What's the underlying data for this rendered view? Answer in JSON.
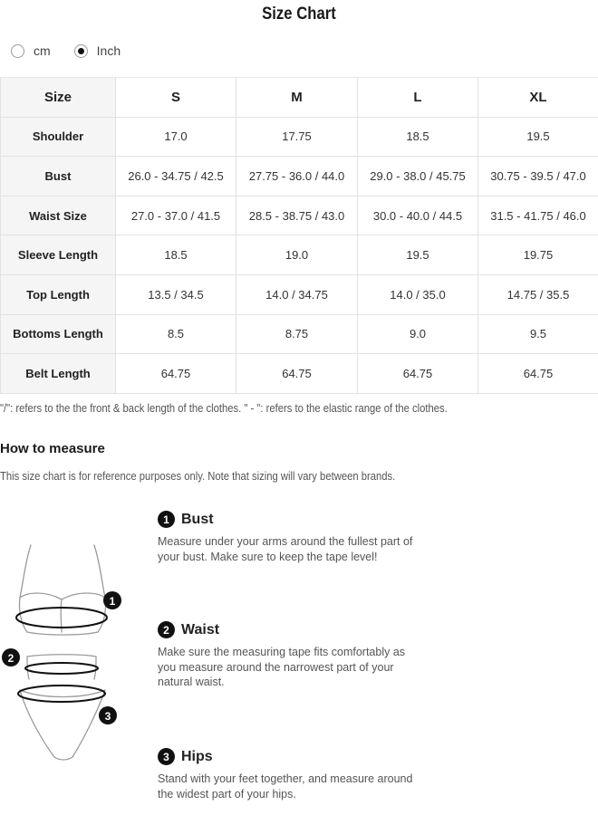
{
  "title": "Size Chart",
  "units": [
    {
      "label": "cm",
      "selected": false
    },
    {
      "label": "Inch",
      "selected": true
    }
  ],
  "table": {
    "header": [
      "Size",
      "S",
      "M",
      "L",
      "XL"
    ],
    "rows": [
      {
        "label": "Shoulder",
        "values": [
          "17.0",
          "17.75",
          "18.5",
          "19.5"
        ]
      },
      {
        "label": "Bust",
        "values": [
          "26.0 - 34.75 / 42.5",
          "27.75 - 36.0 / 44.0",
          "29.0 - 38.0 / 45.75",
          "30.75 - 39.5 / 47.0"
        ]
      },
      {
        "label": "Waist Size",
        "values": [
          "27.0 - 37.0 / 41.5",
          "28.5 - 38.75 / 43.0",
          "30.0 - 40.0 / 44.5",
          "31.5 - 41.75 / 46.0"
        ]
      },
      {
        "label": "Sleeve Length",
        "values": [
          "18.5",
          "19.0",
          "19.5",
          "19.75"
        ]
      },
      {
        "label": "Top Length",
        "values": [
          "13.5 / 34.5",
          "14.0 / 34.75",
          "14.0 / 35.0",
          "14.75 / 35.5"
        ]
      },
      {
        "label": "Bottoms Length",
        "values": [
          "8.5",
          "8.75",
          "9.0",
          "9.5"
        ]
      },
      {
        "label": "Belt Length",
        "values": [
          "64.75",
          "64.75",
          "64.75",
          "64.75"
        ]
      }
    ]
  },
  "note": "\"/\": refers to the the front & back length of the clothes. \" - \":  refers to the elastic range of the clothes.",
  "how_to": {
    "heading": "How to measure",
    "disclaimer": "This size chart is for reference purposes only. Note that sizing will vary between brands.",
    "steps": [
      {
        "num": "1",
        "title": "Bust",
        "desc": "Measure under your arms around the fullest part of your bust. Make sure to keep the tape level!"
      },
      {
        "num": "2",
        "title": "Waist",
        "desc": "Make sure the measuring tape fits comfortably as you measure around the narrowest part of your natural waist."
      },
      {
        "num": "3",
        "title": "Hips",
        "desc": "Stand with your feet together, and measure around the widest part of your hips."
      }
    ],
    "figure_markers": [
      "1",
      "2",
      "3"
    ]
  }
}
